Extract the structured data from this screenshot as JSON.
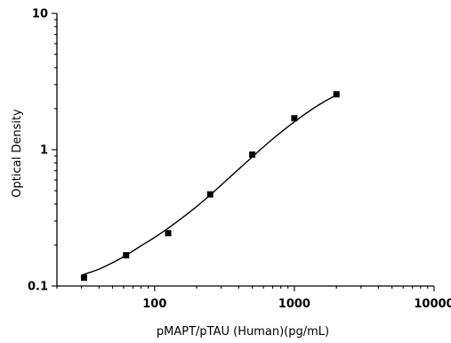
{
  "chart_data": {
    "type": "scatter",
    "xlabel": "pMAPT/pTAU (Human)(pg/mL)",
    "ylabel": "Optical Density",
    "x_scale": "log",
    "y_scale": "log",
    "xlim": [
      20,
      10000
    ],
    "ylim": [
      0.1,
      10
    ],
    "x_ticks": [
      {
        "value": 100,
        "label": "100"
      },
      {
        "value": 1000,
        "label": "1000"
      },
      {
        "value": 10000,
        "label": "10000"
      }
    ],
    "y_ticks": [
      {
        "value": 0.1,
        "label": "0.1"
      },
      {
        "value": 1,
        "label": "1"
      },
      {
        "value": 10,
        "label": "10"
      }
    ],
    "grid": false,
    "series": [
      {
        "x": [
          31.25,
          62.5,
          125,
          250,
          500,
          1000,
          2000
        ],
        "y": [
          0.115,
          0.168,
          0.244,
          0.47,
          0.92,
          1.7,
          2.55
        ]
      }
    ],
    "fit_curve": {
      "type": "4PL",
      "x": [
        30,
        40,
        50,
        62.5,
        80,
        100,
        125,
        160,
        200,
        250,
        320,
        400,
        500,
        640,
        800,
        1000,
        1300,
        1600,
        2000
      ],
      "y": [
        0.12,
        0.133,
        0.148,
        0.168,
        0.197,
        0.227,
        0.265,
        0.32,
        0.383,
        0.465,
        0.585,
        0.72,
        0.885,
        1.11,
        1.34,
        1.6,
        1.94,
        2.22,
        2.52
      ]
    }
  }
}
